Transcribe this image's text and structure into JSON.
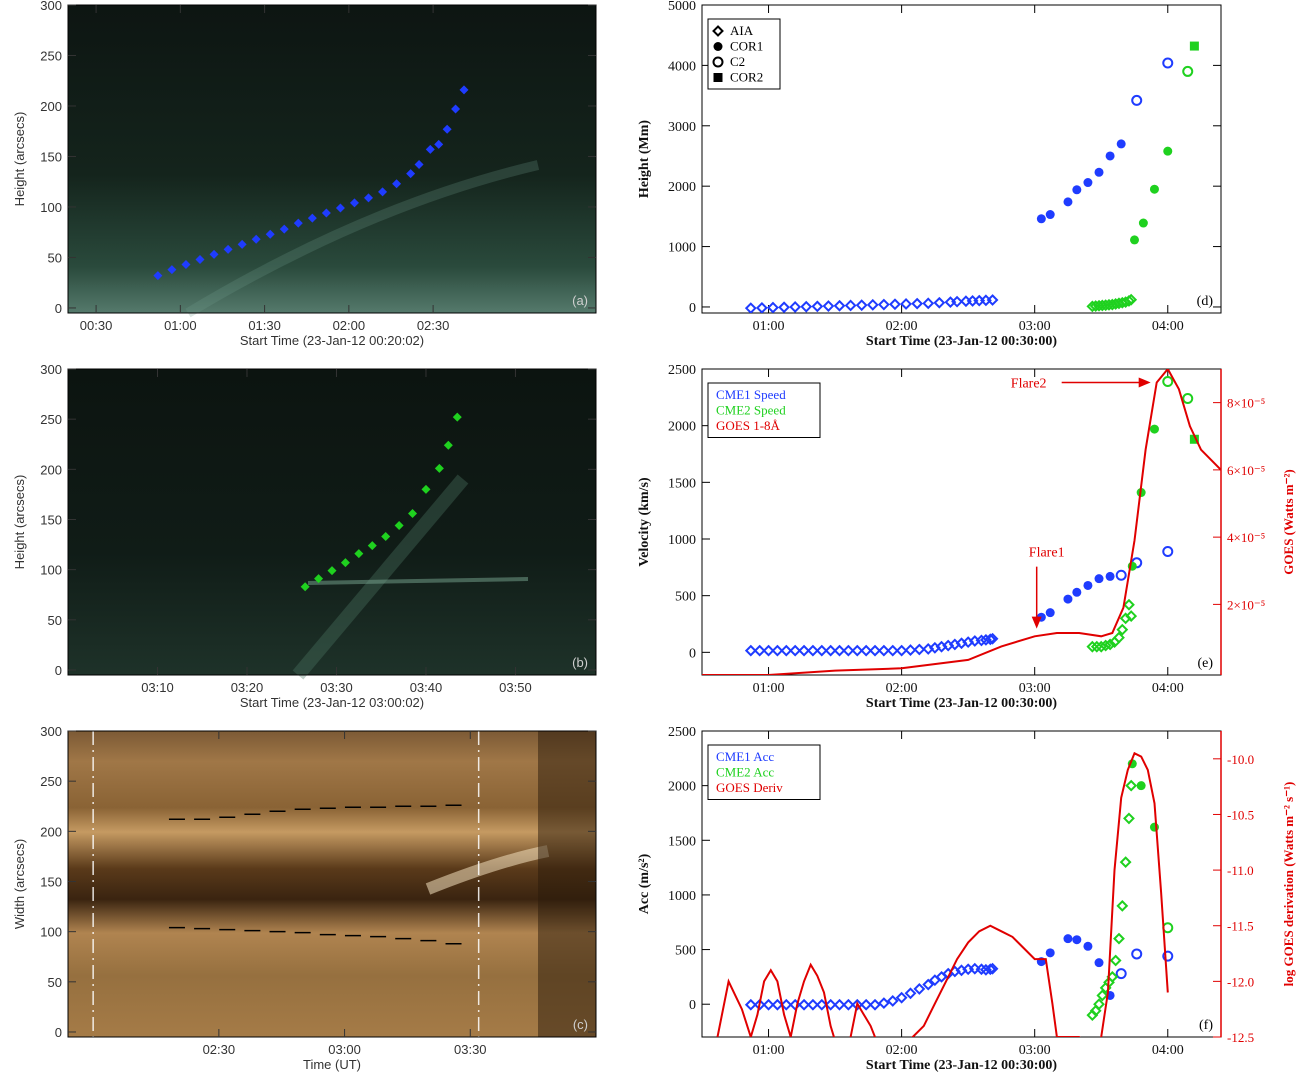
{
  "chart_data": [
    {
      "type": "scatter",
      "panel_label": "(a)",
      "xlabel": "Start Time (23-Jan-12 00:20:02)",
      "ylabel": "Height (arcsecs)",
      "xticks": [
        "00:30",
        "01:00",
        "01:30",
        "02:00",
        "02:30"
      ],
      "xtick_minutes": [
        30,
        60,
        90,
        120,
        150
      ],
      "xlim_minutes": [
        20,
        208
      ],
      "ylim": [
        -5,
        300
      ],
      "yticks": [
        0,
        50,
        100,
        150,
        200,
        250,
        300
      ],
      "background": "time-distance image (green)",
      "series": [
        {
          "color": "#1f3cff",
          "x_minutes": [
            52,
            57,
            62,
            67,
            72,
            77,
            82,
            87,
            92,
            97,
            102,
            107,
            112,
            117,
            122,
            127,
            132,
            137,
            142,
            145,
            149,
            152,
            155,
            158,
            161
          ],
          "y": [
            32,
            38,
            43,
            48,
            53,
            58,
            63,
            68,
            73,
            78,
            84,
            89,
            94,
            99,
            104,
            109,
            115,
            123,
            133,
            142,
            157,
            162,
            177,
            197,
            216
          ]
        }
      ]
    },
    {
      "type": "scatter",
      "panel_label": "(b)",
      "xlabel": "Start Time (23-Jan-12 03:00:02)",
      "ylabel": "Height (arcsecs)",
      "xticks": [
        "03:10",
        "03:20",
        "03:30",
        "03:40",
        "03:50"
      ],
      "xtick_minutes": [
        190,
        200,
        210,
        220,
        230
      ],
      "xlim_minutes": [
        180,
        239
      ],
      "ylim": [
        -5,
        300
      ],
      "yticks": [
        0,
        50,
        100,
        150,
        200,
        250,
        300
      ],
      "background": "time-distance image (green)",
      "series": [
        {
          "color": "#1fd11f",
          "x_minutes": [
            206.5,
            208,
            209.5,
            211,
            212.5,
            214,
            215.5,
            217,
            218.5,
            220,
            221.5,
            222.5,
            223.5
          ],
          "y": [
            83,
            91,
            99,
            107,
            116,
            124,
            133,
            144,
            156,
            180,
            201,
            224,
            252
          ]
        }
      ]
    },
    {
      "type": "scatter",
      "panel_label": "(c)",
      "xlabel": "Time (UT)",
      "ylabel": "Width (arcsecs)",
      "xticks": [
        "02:30",
        "03:00",
        "03:30"
      ],
      "xtick_minutes": [
        150,
        180,
        210
      ],
      "xlim_minutes": [
        114,
        240
      ],
      "ylim": [
        -5,
        300
      ],
      "yticks": [
        0,
        50,
        100,
        150,
        200,
        250,
        300
      ],
      "background": "time-distance image (brown)",
      "vertical_lines_minutes": [
        120,
        212
      ],
      "series": [
        {
          "color": "#000000",
          "x_minutes": [
            140,
            146,
            152,
            158,
            164,
            170,
            176,
            182,
            188,
            194,
            200,
            206
          ],
          "y": [
            212,
            212,
            214,
            217,
            220,
            222,
            223,
            224,
            224,
            225,
            225,
            226
          ]
        },
        {
          "color": "#000000",
          "x_minutes": [
            140,
            146,
            152,
            158,
            164,
            170,
            176,
            182,
            188,
            194,
            200,
            206
          ],
          "y": [
            104,
            103,
            102,
            101,
            100,
            99,
            97,
            96,
            95,
            93,
            91,
            88
          ]
        }
      ]
    },
    {
      "type": "scatter",
      "panel_label": "(d)",
      "xlabel": "Start Time (23-Jan-12 00:30:00)",
      "ylabel": "Height (Mm)",
      "xticks": [
        "01:00",
        "02:00",
        "03:00",
        "04:00"
      ],
      "xtick_minutes": [
        60,
        120,
        180,
        240
      ],
      "xlim_minutes": [
        30,
        264
      ],
      "ylim": [
        -100,
        5000
      ],
      "yticks": [
        0,
        1000,
        2000,
        3000,
        4000,
        5000
      ],
      "legend": [
        "AIA",
        "COR1",
        "C2",
        "COR2"
      ],
      "legend_markers": [
        "diamond-open",
        "circle-filled",
        "circle-open",
        "square-filled"
      ],
      "legend_position": "top-left",
      "series": [
        {
          "marker": "diamond-open",
          "color": "#1f3cff",
          "x_minutes": [
            52,
            57,
            62,
            67,
            72,
            77,
            82,
            87,
            92,
            97,
            102,
            107,
            112,
            117,
            122,
            127,
            132,
            137,
            142,
            145,
            149,
            152,
            155,
            158,
            161
          ],
          "y": [
            -20,
            -15,
            -10,
            -5,
            0,
            5,
            10,
            15,
            20,
            25,
            30,
            35,
            40,
            45,
            50,
            55,
            60,
            70,
            80,
            88,
            95,
            100,
            105,
            110,
            115
          ]
        },
        {
          "marker": "circle-filled",
          "color": "#1f3cff",
          "x_minutes": [
            183,
            187,
            195,
            199,
            204,
            209,
            214,
            219
          ],
          "y": [
            1460,
            1530,
            1740,
            1940,
            2060,
            2230,
            2500,
            2700
          ]
        },
        {
          "marker": "circle-open",
          "color": "#1f3cff",
          "x_minutes": [
            226,
            240
          ],
          "y": [
            3420,
            4040
          ]
        },
        {
          "marker": "circle-open",
          "color": "#1fd11f",
          "x_minutes": [
            249
          ],
          "y": [
            3900
          ]
        },
        {
          "marker": "diamond-open",
          "color": "#1fd11f",
          "x_minutes": [
            206,
            207.5,
            209,
            210.5,
            212,
            213.5,
            215,
            216.5,
            218,
            219.5,
            221,
            222.5,
            223.5
          ],
          "y": [
            10,
            15,
            20,
            25,
            30,
            35,
            40,
            50,
            60,
            70,
            80,
            100,
            120
          ]
        },
        {
          "marker": "circle-filled",
          "color": "#1fd11f",
          "x_minutes": [
            225,
            229,
            234,
            240
          ],
          "y": [
            1110,
            1390,
            1950,
            2580
          ]
        },
        {
          "marker": "square-filled",
          "color": "#1fd11f",
          "x_minutes": [
            252
          ],
          "y": [
            4320
          ]
        }
      ]
    },
    {
      "type": "scatter",
      "panel_label": "(e)",
      "xlabel": "Start Time (23-Jan-12 00:30:00)",
      "ylabel": "Velocity (km/s)",
      "y2label": "GOES (Watts m⁻²)",
      "xticks": [
        "01:00",
        "02:00",
        "03:00",
        "04:00"
      ],
      "xtick_minutes": [
        60,
        120,
        180,
        240
      ],
      "xlim_minutes": [
        30,
        264
      ],
      "ylim": [
        -200,
        2500
      ],
      "yticks": [
        0,
        500,
        1000,
        1500,
        2000,
        2500
      ],
      "y2ticks": [
        "2×10⁻⁵",
        "4×10⁻⁵",
        "6×10⁻⁵",
        "8×10⁻⁵"
      ],
      "y2tick_values": [
        2e-05,
        4e-05,
        6e-05,
        8e-05
      ],
      "y2lim": [
        -1e-06,
        9e-05
      ],
      "legend": [
        "CME1 Speed",
        "CME2 Speed",
        "GOES 1-8Å"
      ],
      "legend_position": "top-left",
      "annotations": [
        "Flare1",
        "Flare2"
      ],
      "series": [
        {
          "name": "CME1 Speed",
          "color": "#1f3cff",
          "marker": "diamond-open",
          "x_minutes": [
            52,
            56,
            60,
            64,
            68,
            72,
            76,
            80,
            84,
            88,
            92,
            96,
            100,
            104,
            108,
            112,
            116,
            120,
            124,
            128,
            132,
            135,
            138,
            141,
            144,
            147,
            150,
            153,
            156,
            158,
            160,
            161
          ],
          "y": [
            15,
            15,
            15,
            15,
            15,
            15,
            15,
            15,
            15,
            15,
            15,
            15,
            15,
            15,
            15,
            15,
            15,
            15,
            20,
            25,
            30,
            40,
            50,
            60,
            70,
            80,
            90,
            100,
            105,
            110,
            115,
            120
          ]
        },
        {
          "name": "CME1 Speed COR1",
          "color": "#1f3cff",
          "marker": "circle-filled",
          "x_minutes": [
            183,
            187,
            195,
            199,
            204,
            209,
            214
          ],
          "y": [
            310,
            350,
            470,
            530,
            590,
            650,
            670
          ]
        },
        {
          "name": "CME1 Speed C2",
          "color": "#1f3cff",
          "marker": "circle-open",
          "x_minutes": [
            219,
            226,
            240
          ],
          "y": [
            680,
            790,
            890
          ]
        },
        {
          "name": "CME2 Speed",
          "color": "#1fd11f",
          "marker": "diamond-open",
          "x_minutes": [
            206,
            208,
            210,
            212,
            214,
            216,
            218,
            219.5,
            221,
            222.5,
            223.5
          ],
          "y": [
            50,
            50,
            50,
            60,
            70,
            90,
            130,
            200,
            300,
            420,
            320
          ]
        },
        {
          "name": "CME2 Speed COR1",
          "color": "#1fd11f",
          "marker": "circle-filled",
          "x_minutes": [
            224,
            228,
            234
          ],
          "y": [
            760,
            1410,
            1970
          ]
        },
        {
          "name": "CME2 Speed C2",
          "color": "#1fd11f",
          "marker": "circle-open",
          "x_minutes": [
            240,
            249
          ],
          "y": [
            2390,
            2240
          ]
        },
        {
          "name": "CME2 Speed COR2",
          "color": "#1fd11f",
          "marker": "square-filled",
          "x_minutes": [
            252
          ],
          "y": [
            1880
          ]
        },
        {
          "name": "GOES 1-8Å",
          "color": "#e00000",
          "marker": "line",
          "x_minutes": [
            30,
            60,
            90,
            120,
            150,
            165,
            180,
            190,
            200,
            210,
            215,
            220,
            225,
            230,
            235,
            240,
            245,
            250,
            255,
            264
          ],
          "y": [
            -1e-06,
            -1e-06,
            3e-07,
            1e-06,
            3.5e-06,
            7.5e-06,
            1.05e-05,
            1.15e-05,
            1.15e-05,
            1.05e-05,
            1.15e-05,
            1.9e-05,
            3.9e-05,
            6.6e-05,
            8.6e-05,
            9e-05,
            8.4e-05,
            7.3e-05,
            6.6e-05,
            6e-05
          ]
        }
      ]
    },
    {
      "type": "scatter",
      "panel_label": "(f)",
      "xlabel": "Start Time (23-Jan-12 00:30:00)",
      "ylabel": "Acc (m/s²)",
      "y2label": "log GOES derivation (Watts m⁻² s⁻¹)",
      "xticks": [
        "01:00",
        "02:00",
        "03:00",
        "04:00"
      ],
      "xtick_minutes": [
        60,
        120,
        180,
        240
      ],
      "xlim_minutes": [
        30,
        264
      ],
      "ylim": [
        -300,
        2500
      ],
      "yticks": [
        0,
        500,
        1000,
        1500,
        2000,
        2500
      ],
      "y2ticks": [
        "-10.0",
        "-10.5",
        "-11.0",
        "-11.5",
        "-12.0",
        "-12.5"
      ],
      "y2tick_values": [
        -10.0,
        -10.5,
        -11.0,
        -11.5,
        -12.0,
        -12.5
      ],
      "y2lim": [
        -12.5,
        -9.75
      ],
      "legend": [
        "CME1 Acc",
        "CME2 Acc",
        "GOES Deriv"
      ],
      "legend_position": "top-left",
      "series": [
        {
          "name": "CME1 Acc",
          "color": "#1f3cff",
          "marker": "diamond-open",
          "x_minutes": [
            52,
            56,
            60,
            64,
            68,
            72,
            76,
            80,
            84,
            88,
            92,
            96,
            100,
            104,
            108,
            112,
            116,
            120,
            124,
            128,
            132,
            135,
            138,
            141,
            144,
            147,
            150,
            153,
            156,
            158,
            160,
            161
          ],
          "y": [
            -5,
            -5,
            -5,
            -5,
            -5,
            -5,
            -5,
            -5,
            -5,
            -5,
            -5,
            -5,
            -5,
            -5,
            -5,
            10,
            30,
            60,
            100,
            140,
            180,
            220,
            250,
            280,
            300,
            310,
            320,
            325,
            320,
            315,
            320,
            325
          ]
        },
        {
          "name": "CME1 Acc COR1",
          "color": "#1f3cff",
          "marker": "circle-filled",
          "x_minutes": [
            183,
            187,
            195,
            199,
            204,
            209,
            214
          ],
          "y": [
            390,
            470,
            600,
            590,
            530,
            380,
            80
          ]
        },
        {
          "name": "CME1 Acc C2",
          "color": "#1f3cff",
          "marker": "circle-open",
          "x_minutes": [
            219,
            226,
            240
          ],
          "y": [
            280,
            460,
            440
          ]
        },
        {
          "name": "CME2 Acc",
          "color": "#1fd11f",
          "marker": "diamond-open",
          "x_minutes": [
            206,
            207.5,
            209,
            210.5,
            212,
            213.5,
            215,
            216.5,
            218,
            219.5,
            221,
            222.5,
            223.5
          ],
          "y": [
            -100,
            -60,
            0,
            80,
            150,
            200,
            250,
            400,
            600,
            900,
            1300,
            1700,
            2000
          ]
        },
        {
          "name": "CME2 Acc COR1",
          "color": "#1fd11f",
          "marker": "circle-filled",
          "x_minutes": [
            224,
            228,
            234
          ],
          "y": [
            2200,
            2000,
            1620
          ]
        },
        {
          "name": "CME2 Acc C2",
          "color": "#1fd11f",
          "marker": "circle-open",
          "x_minutes": [
            240
          ],
          "y": [
            700
          ]
        },
        {
          "name": "GOES Deriv",
          "color": "#e00000",
          "marker": "line",
          "x_minutes": [
            37,
            42,
            48,
            52,
            55,
            58,
            61,
            64,
            67,
            70,
            73,
            76,
            79,
            82,
            85,
            88,
            91,
            94,
            97,
            100,
            103,
            106,
            110,
            115,
            120,
            125,
            130,
            135,
            140,
            145,
            150,
            155,
            160,
            165,
            170,
            175,
            180,
            185,
            188,
            190,
            193,
            200,
            205,
            210,
            213,
            216,
            219,
            222,
            225,
            228,
            231,
            234,
            237,
            240
          ],
          "y": [
            -12.5,
            -12.0,
            -12.25,
            -12.5,
            -12.3,
            -12.0,
            -11.9,
            -12.0,
            -12.3,
            -12.5,
            -12.2,
            -12.0,
            -11.85,
            -11.95,
            -12.1,
            -12.4,
            -12.6,
            -12.9,
            -12.5,
            -12.2,
            -12.3,
            -12.4,
            -12.6,
            -12.6,
            -12.7,
            -12.5,
            -12.4,
            -12.2,
            -12.0,
            -11.8,
            -11.65,
            -11.55,
            -11.5,
            -11.55,
            -11.6,
            -11.7,
            -11.8,
            -11.8,
            -12.2,
            -12.5,
            -12.5,
            -12.5,
            -12.6,
            -12.5,
            -12.1,
            -11.0,
            -10.35,
            -10.1,
            -9.95,
            -9.98,
            -10.1,
            -10.4,
            -11.2,
            -12.1
          ]
        }
      ]
    }
  ]
}
